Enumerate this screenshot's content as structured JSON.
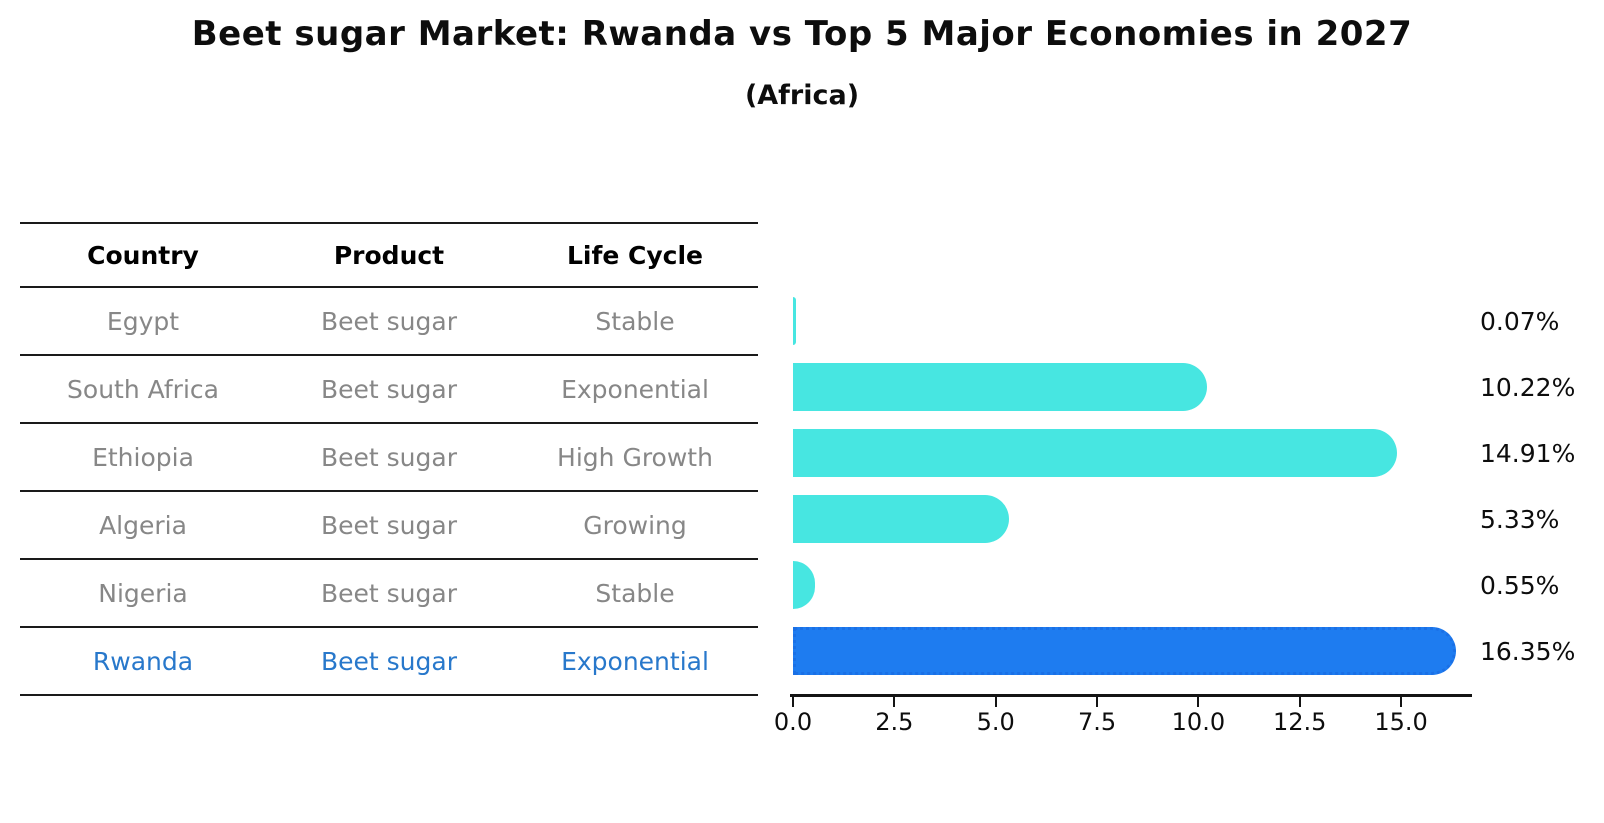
{
  "title": "Beet sugar Market: Rwanda vs Top 5 Major Economies in 2027",
  "subtitle": "(Africa)",
  "colors": {
    "bar_default": "#47e6e1",
    "bar_highlight": "#1e7cf0",
    "highlight_text": "#2878cb",
    "body_text": "#878787",
    "header_text": "#000000",
    "axis_line": "#141414"
  },
  "table": {
    "columns": [
      "Country",
      "Product",
      "Life Cycle"
    ],
    "rows": [
      {
        "country": "Egypt",
        "product": "Beet sugar",
        "life_cycle": "Stable",
        "highlight": false
      },
      {
        "country": "South Africa",
        "product": "Beet sugar",
        "life_cycle": "Exponential",
        "highlight": false
      },
      {
        "country": "Ethiopia",
        "product": "Beet sugar",
        "life_cycle": "High Growth",
        "highlight": false
      },
      {
        "country": "Algeria",
        "product": "Beet sugar",
        "life_cycle": "Growing",
        "highlight": false
      },
      {
        "country": "Nigeria",
        "product": "Beet sugar",
        "life_cycle": "Stable",
        "highlight": false
      },
      {
        "country": "Rwanda",
        "product": "Beet sugar",
        "life_cycle": "Exponential",
        "highlight": true
      }
    ]
  },
  "chart_data": {
    "type": "bar",
    "orientation": "horizontal",
    "title": "Beet sugar Market: Rwanda vs Top 5 Major Economies in 2027",
    "subtitle": "(Africa)",
    "categories": [
      "Egypt",
      "South Africa",
      "Ethiopia",
      "Algeria",
      "Nigeria",
      "Rwanda"
    ],
    "values": [
      0.07,
      10.22,
      14.91,
      5.33,
      0.55,
      16.35
    ],
    "value_labels": [
      "0.07%",
      "10.22%",
      "14.91%",
      "5.33%",
      "0.55%",
      "16.35%"
    ],
    "highlight_index": 5,
    "xlabel": "",
    "ylabel": "",
    "xlim": [
      0,
      16.7
    ],
    "xticks": [
      0.0,
      2.5,
      5.0,
      7.5,
      10.0,
      12.5,
      15.0
    ],
    "xtick_labels": [
      "0.0",
      "2.5",
      "5.0",
      "7.5",
      "10.0",
      "12.5",
      "15.0"
    ],
    "grid": false,
    "legend": false
  }
}
